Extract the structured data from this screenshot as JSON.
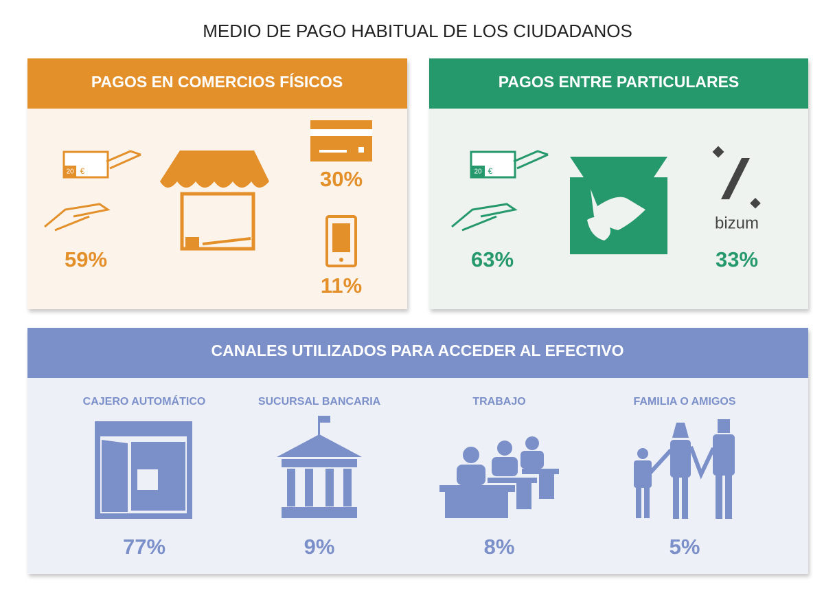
{
  "title": "MEDIO DE PAGO HABITUAL DE LOS CIUDADANOS",
  "panels": [
    {
      "title": "PAGOS EN COMERCIOS FÍSICOS",
      "cash_note": {
        "amount": "20",
        "currency": "€"
      },
      "items": [
        "59%",
        "30%",
        "11%"
      ]
    },
    {
      "title": "PAGOS ENTRE PARTICULARES",
      "cash_note": {
        "amount": "20",
        "currency": "€"
      },
      "brand": "bizum",
      "items": [
        "63%",
        "33%"
      ]
    },
    {
      "title": "CANALES UTILIZADOS PARA ACCEDER AL EFECTIVO",
      "channels": [
        {
          "label": "CAJERO AUTOMÁTICO",
          "value": "77%"
        },
        {
          "label": "SUCURSAL BANCARIA",
          "value": "9%"
        },
        {
          "label": "TRABAJO",
          "value": "8%"
        },
        {
          "label": "FAMILIA O AMIGOS",
          "value": "5%"
        }
      ]
    }
  ]
}
